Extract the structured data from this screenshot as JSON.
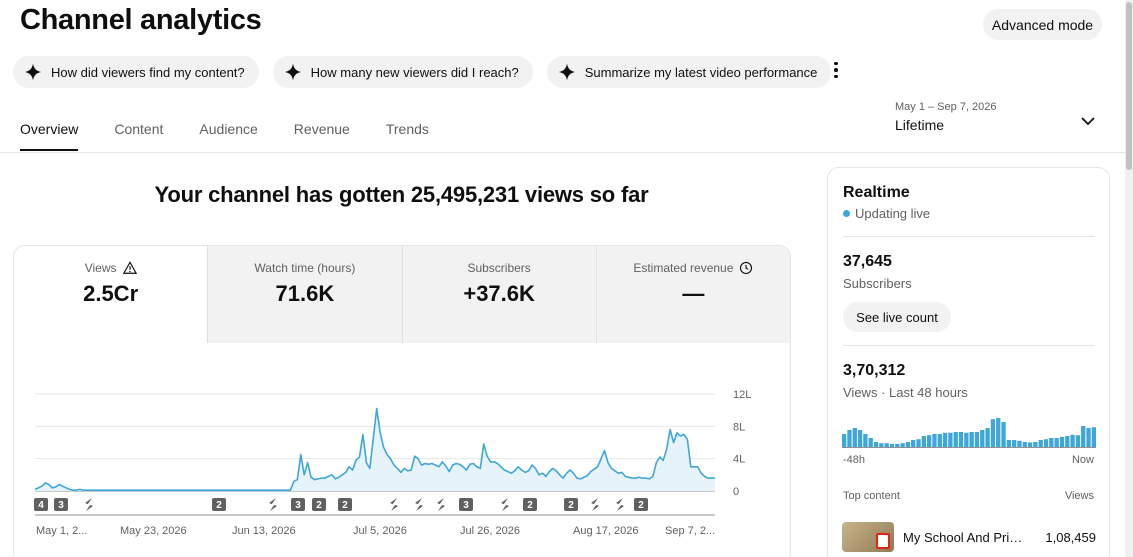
{
  "header": {
    "title": "Channel analytics",
    "advanced_mode_label": "Advanced mode"
  },
  "suggestions": [
    {
      "label": "How did viewers find my content?",
      "icon": "sparkle-icon"
    },
    {
      "label": "How many new viewers did I reach?",
      "icon": "sparkle-icon"
    },
    {
      "label": "Summarize my latest video performance",
      "icon": "sparkle-icon"
    }
  ],
  "tabs": [
    {
      "label": "Overview",
      "active": true
    },
    {
      "label": "Content",
      "active": false
    },
    {
      "label": "Audience",
      "active": false
    },
    {
      "label": "Revenue",
      "active": false
    },
    {
      "label": "Trends",
      "active": false
    }
  ],
  "date_range": {
    "range": "May 1 – Sep 7, 2026",
    "label": "Lifetime",
    "icon": "chevron-down-icon"
  },
  "headline": "Your channel has gotten 25,495,231 views so far",
  "metrics": [
    {
      "label": "Views",
      "value": "2.5Cr",
      "icon": "warning-icon",
      "active": true
    },
    {
      "label": "Watch time (hours)",
      "value": "71.6K",
      "icon": "",
      "active": false
    },
    {
      "label": "Subscribers",
      "value": "+37.6K",
      "icon": "",
      "active": false
    },
    {
      "label": "Estimated revenue",
      "value": "—",
      "icon": "clock-icon",
      "active": false
    }
  ],
  "chart_data": {
    "type": "area",
    "title": "",
    "xlabel": "",
    "ylabel": "",
    "y_ticks": [
      "0",
      "4L",
      "8L",
      "12L"
    ],
    "ylim": [
      0,
      12
    ],
    "y_unit": "L",
    "x_tick_labels": [
      "May 1, 2...",
      "May 23, 2026",
      "Jun 13, 2026",
      "Jul 5, 2026",
      "Jul 26, 2026",
      "Aug 17, 2026",
      "Sep 7, 2..."
    ],
    "grid": true,
    "series": [
      {
        "color": "#3ea6d8",
        "values": [
          0.2,
          0.4,
          0.6,
          1.0,
          0.8,
          0.4,
          0.5,
          0.8,
          0.6,
          0.4,
          0.2,
          0.1,
          0.1,
          0.2,
          0.1,
          0.1,
          0.1,
          0.1,
          0.1,
          0.1,
          0.1,
          0.1,
          0.1,
          0.1,
          0.1,
          0.1,
          0.1,
          0.1,
          0.1,
          0.1,
          0.1,
          0.1,
          0.1,
          0.1,
          0.1,
          0.1,
          0.1,
          0.1,
          0.1,
          0.1,
          0.1,
          0.1,
          0.1,
          0.1,
          0.1,
          0.1,
          0.1,
          0.1,
          0.1,
          0.1,
          0.1,
          0.1,
          0.1,
          0.1,
          0.1,
          0.1,
          0.1,
          0.1,
          0.1,
          0.1,
          0.1,
          0.1,
          0.1,
          0.1,
          0.1,
          0.1,
          0.1,
          0.1,
          0.1,
          0.1,
          0.1,
          0.1,
          0.1,
          0.1,
          0.1,
          1.2,
          1.4,
          4.5,
          2.0,
          3.5,
          1.7,
          1.4,
          1.5,
          1.6,
          1.6,
          1.8,
          2.0,
          1.5,
          1.7,
          2.0,
          2.3,
          3.0,
          2.6,
          3.8,
          4.2,
          7.0,
          3.5,
          2.8,
          6.5,
          10.2,
          7.2,
          5.4,
          4.5,
          4.0,
          3.2,
          2.8,
          2.3,
          2.8,
          2.5,
          2.6,
          4.3,
          4.0,
          3.2,
          3.4,
          3.3,
          3.4,
          3.2,
          3.0,
          3.6,
          3.1,
          2.4,
          3.2,
          3.4,
          3.3,
          3.0,
          2.6,
          3.3,
          3.4,
          3.0,
          2.8,
          5.8,
          4.3,
          3.6,
          3.6,
          3.4,
          3.0,
          2.6,
          2.4,
          2.2,
          2.5,
          3.0,
          2.6,
          2.3,
          2.5,
          3.2,
          2.8,
          2.0,
          2.2,
          1.8,
          2.4,
          2.8,
          2.5,
          2.0,
          1.6,
          2.2,
          2.6,
          2.2,
          1.6,
          1.5,
          1.7,
          1.9,
          2.4,
          2.7,
          3.0,
          4.0,
          5.0,
          3.5,
          2.8,
          2.5,
          2.2,
          2.3,
          1.8,
          1.7,
          1.6,
          1.6,
          1.7,
          1.6,
          1.6,
          1.5,
          1.8,
          3.5,
          4.2,
          3.8,
          5.2,
          7.6,
          6.0,
          7.2,
          6.8,
          7.0,
          6.4,
          3.0,
          3.0,
          3.0,
          2.2,
          1.8,
          1.6,
          1.6,
          1.6
        ]
      }
    ],
    "annotations": [
      {
        "label": "4",
        "type": "number"
      },
      {
        "label": "3",
        "type": "number"
      },
      {
        "label": "",
        "type": "shorts"
      },
      {
        "label": "2",
        "type": "number"
      },
      {
        "label": "",
        "type": "shorts"
      },
      {
        "label": "3",
        "type": "number"
      },
      {
        "label": "2",
        "type": "number"
      },
      {
        "label": "2",
        "type": "number"
      },
      {
        "label": "",
        "type": "shorts"
      },
      {
        "label": "",
        "type": "shorts"
      },
      {
        "label": "",
        "type": "shorts"
      },
      {
        "label": "3",
        "type": "number"
      },
      {
        "label": "",
        "type": "shorts"
      },
      {
        "label": "2",
        "type": "number"
      },
      {
        "label": "2",
        "type": "number"
      },
      {
        "label": "",
        "type": "shorts"
      },
      {
        "label": "",
        "type": "shorts"
      },
      {
        "label": "2",
        "type": "number"
      }
    ]
  },
  "realtime": {
    "title": "Realtime",
    "status": "Updating live",
    "subscribers_value": "37,645",
    "subscribers_label": "Subscribers",
    "live_count_button": "See live count",
    "views_value": "3,70,312",
    "views_label": "Views · Last 48 hours",
    "axis_start": "-48h",
    "axis_end": "Now",
    "bar_color": "#3ea6d8",
    "bars": [
      0.35,
      0.45,
      0.5,
      0.45,
      0.35,
      0.25,
      0.15,
      0.12,
      0.12,
      0.1,
      0.1,
      0.12,
      0.15,
      0.2,
      0.22,
      0.3,
      0.32,
      0.35,
      0.35,
      0.38,
      0.38,
      0.4,
      0.4,
      0.38,
      0.4,
      0.4,
      0.45,
      0.5,
      0.72,
      0.75,
      0.65,
      0.2,
      0.2,
      0.18,
      0.15,
      0.14,
      0.15,
      0.2,
      0.22,
      0.25,
      0.25,
      0.28,
      0.3,
      0.33,
      0.32,
      0.55,
      0.5,
      0.52
    ],
    "top_content_header": "Top content",
    "views_header": "Views",
    "top_content": [
      {
        "title": "My School And Prin...",
        "views": "1,08,459"
      }
    ]
  }
}
